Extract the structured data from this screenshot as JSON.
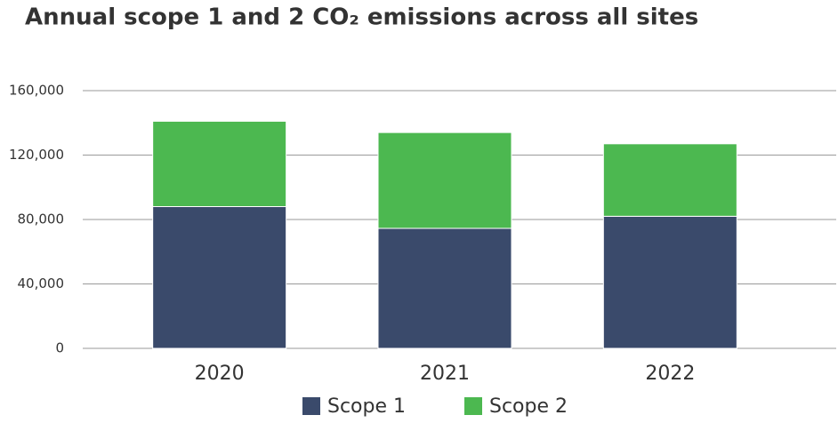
{
  "chart_data": {
    "type": "stacked-bar",
    "title": "Annual scope 1 and 2 CO₂ emissions across all sites",
    "categories": [
      "2020",
      "2021",
      "2022"
    ],
    "series": [
      {
        "name": "Scope 1",
        "color": "#3a4a6b",
        "values": [
          88000,
          74500,
          82000
        ]
      },
      {
        "name": "Scope 2",
        "color": "#4cb850",
        "values": [
          53000,
          59500,
          45000
        ]
      }
    ],
    "ylim": [
      0,
      160000
    ],
    "yticks": [
      0,
      {
        "value": 40000,
        "label": "40,000"
      },
      {
        "value": 80000,
        "label": "80,000"
      },
      {
        "value": 120000,
        "label": "120,000"
      },
      {
        "value": 160000,
        "label": "160,000"
      }
    ],
    "grid": true,
    "legend": "bottom"
  }
}
